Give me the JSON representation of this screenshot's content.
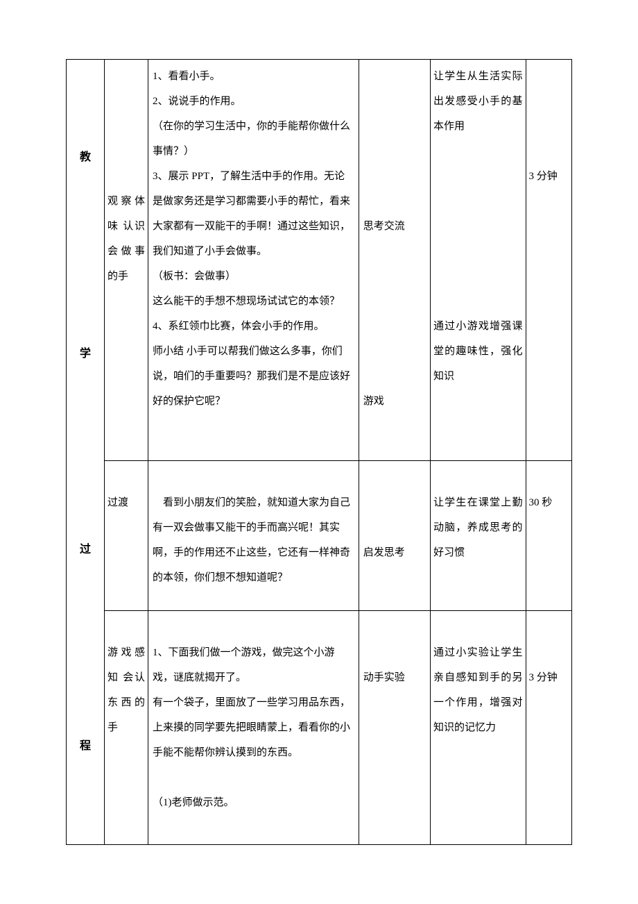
{
  "col1_chars": [
    "教",
    "学",
    "过",
    "程"
  ],
  "rows": [
    {
      "stage": "观察体味 认识会做事的手",
      "teacher": "1、看看小手。\n2、说说手的作用。\n（在你的学习生活中，你的手能帮你做什么事情？）\n3、展示 PPT，了解生活中手的作用。无论是做家务还是学习都需要小手的帮忙，看来大家都有一双能干的手啊！通过这些知识，我们知道了小手会做事。\n（板书：会做事）\n这么能干的手想不想现场试试它的本领？\n4、系红领巾比赛，体会小手的作用。\n师小结 小手可以帮我们做这么多事，你们说，咱们的手重要吗？那我们是不是应该好好的保护它呢？",
      "student_blocks": [
        {
          "text": "思考交流",
          "before_lines": 6
        },
        {
          "text": "游戏",
          "before_lines": 6
        }
      ],
      "intent_blocks": [
        {
          "text": "让学生从生活实际出发感受小手的基本作用",
          "before_lines": 0
        },
        {
          "text": "通过小游戏增强课堂的趣味性，强化知识",
          "before_lines": 7
        }
      ],
      "time": "3 分钟",
      "time_before_lines": 4
    },
    {
      "stage": "过渡",
      "teacher_indent": "看到小朋友们的笑脸，就知道大家为自己有一双会做事又能干的手而高兴呢！其实啊，手的作用还不止这些，它还有一样神奇的本领，你们想不想知道呢？",
      "student_blocks": [
        {
          "text": "启发思考",
          "before_lines": 3
        }
      ],
      "intent_blocks": [
        {
          "text": "让学生在课堂上勤动脑，养成思考的好习惯",
          "before_lines": 1
        }
      ],
      "time": "30 秒",
      "time_before_lines": 1
    },
    {
      "stage": "游戏感知 会认东西的手",
      "teacher": "1、下面我们做一个游戏，做完这个小游戏，谜底就揭开了。\n有一个袋子，里面放了一些学习用品东西，上来摸的同学要先把眼睛蒙上，看看你的小手能不能帮你辨认摸到的东西。\n\n（1)老师做示范。",
      "student_blocks": [
        {
          "text": "动手实验",
          "before_lines": 2
        }
      ],
      "intent_blocks": [
        {
          "text": "通过小实验让学生亲自感知到手的另一个作用，增强对知识的记忆力",
          "before_lines": 1
        }
      ],
      "time": "3 分钟",
      "time_before_lines": 2
    }
  ]
}
